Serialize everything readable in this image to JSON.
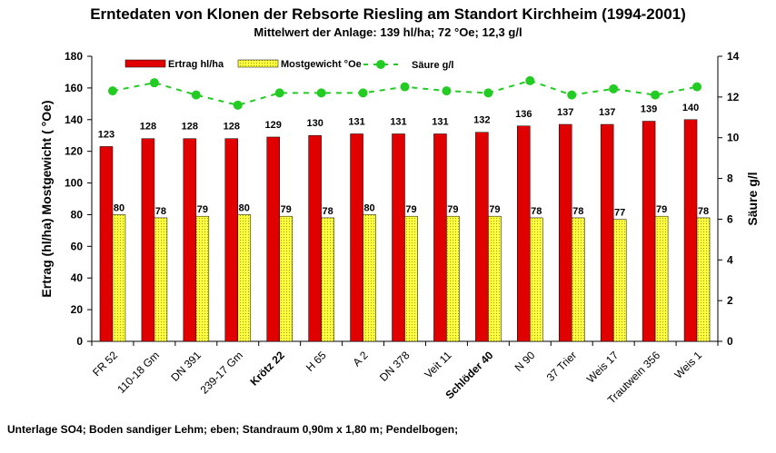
{
  "chart_data": {
    "type": "bar",
    "title": "Erntedaten von Klonen der Rebsorte Riesling am Standort Kirchheim (1994-2001)",
    "subtitle": "Mittelwert der Anlage: 139 hl/ha; 72 °Oe; 12,3 g/l",
    "ylabel": "Ertrag (hl/ha)   Mostgewicht ( °Oe)",
    "y2label": "Säure g/l",
    "ylim": [
      0,
      180
    ],
    "y2lim": [
      0,
      14
    ],
    "yticks": [
      0,
      20,
      40,
      60,
      80,
      100,
      120,
      140,
      160,
      180
    ],
    "y2ticks": [
      0,
      2,
      4,
      6,
      8,
      10,
      12,
      14
    ],
    "legend_position": "top",
    "categories": [
      "FR 52",
      "110-18 Gm",
      "DN 391",
      "239-17 Gm",
      "Krötz 22",
      "H 65",
      "A 2",
      "DN 378",
      "Veit 11",
      "Schlöder 40",
      "N 90",
      "37 Trier",
      "Weis 17",
      "Trautwein 356",
      "Weis 1"
    ],
    "bold_categories": [
      "Krötz 22",
      "Schlöder 40"
    ],
    "series": [
      {
        "name": "Ertrag hl/ha",
        "type": "bar",
        "axis": "left",
        "color": "#e00000",
        "values": [
          123,
          128,
          128,
          128,
          129,
          130,
          131,
          131,
          131,
          132,
          136,
          137,
          137,
          139,
          140
        ]
      },
      {
        "name": "Mostgewicht °Oe",
        "type": "bar",
        "axis": "left",
        "color": "#ffff40",
        "values": [
          80,
          78,
          79,
          80,
          79,
          78,
          80,
          79,
          79,
          79,
          78,
          78,
          77,
          79,
          78
        ]
      },
      {
        "name": "Säure g/l",
        "type": "line",
        "axis": "right",
        "color": "#22cc22",
        "values": [
          12.3,
          12.7,
          12.1,
          11.6,
          12.2,
          12.2,
          12.2,
          12.5,
          12.3,
          12.2,
          12.8,
          12.1,
          12.4,
          12.1,
          12.5
        ]
      }
    ],
    "footnote": "Unterlage SO4; Boden sandiger Lehm; eben; Standraum 0,90m x 1,80 m; Pendelbogen;"
  }
}
